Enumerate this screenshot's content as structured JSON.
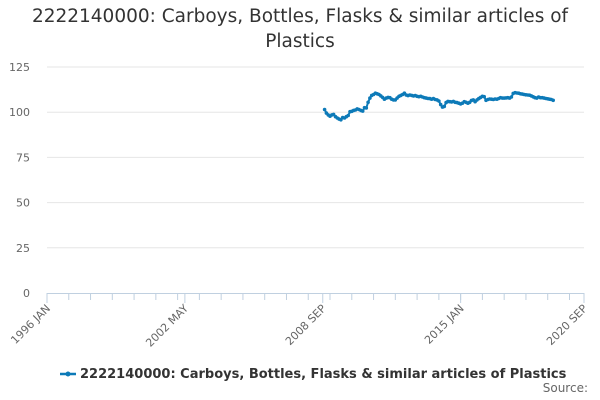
{
  "chart_data": {
    "type": "line",
    "title": "2222140000: Carboys, Bottles, Flasks & similar articles of Plastics",
    "source_label": "Source:",
    "x_axis": {
      "type": "date",
      "range": [
        "1996-01",
        "2020-09"
      ],
      "tick_labels": [
        "1996 JAN",
        "2002 MAY",
        "2008 SEP",
        "2015 JAN",
        "2020 SEP"
      ],
      "tick_dates": [
        "1996-01",
        "2002-05",
        "2008-09",
        "2015-01",
        "2020-09"
      ],
      "minor_tick_interval_months": 12
    },
    "y_axis": {
      "range": [
        0,
        125
      ],
      "ticks": [
        0,
        25,
        50,
        75,
        100,
        125
      ]
    },
    "grid": "horizontal",
    "legend_position": "bottom",
    "series": [
      {
        "name": "2222140000: Carboys, Bottles, Flasks & similar articles of Plastics",
        "color": "#0d7ab8",
        "points": [
          [
            "2008-10",
            101.5
          ],
          [
            "2008-11",
            99.5
          ],
          [
            "2008-12",
            98.5
          ],
          [
            "2009-01",
            97.8
          ],
          [
            "2009-02",
            98.5
          ],
          [
            "2009-03",
            98.8
          ],
          [
            "2009-04",
            97.5
          ],
          [
            "2009-05",
            96.8
          ],
          [
            "2009-06",
            96.2
          ],
          [
            "2009-07",
            95.8
          ],
          [
            "2009-08",
            97.0
          ],
          [
            "2009-09",
            96.8
          ],
          [
            "2009-10",
            97.5
          ],
          [
            "2009-11",
            98.2
          ],
          [
            "2009-12",
            100.3
          ],
          [
            "2010-01",
            100.5
          ],
          [
            "2010-02",
            101.0
          ],
          [
            "2010-03",
            101.2
          ],
          [
            "2010-04",
            101.8
          ],
          [
            "2010-05",
            101.5
          ],
          [
            "2010-06",
            101.0
          ],
          [
            "2010-07",
            100.6
          ],
          [
            "2010-08",
            102.5
          ],
          [
            "2010-09",
            102.3
          ],
          [
            "2010-10",
            105.5
          ],
          [
            "2010-11",
            107.8
          ],
          [
            "2010-12",
            109.3
          ],
          [
            "2011-01",
            109.8
          ],
          [
            "2011-02",
            110.5
          ],
          [
            "2011-03",
            110.2
          ],
          [
            "2011-04",
            109.8
          ],
          [
            "2011-05",
            109.0
          ],
          [
            "2011-06",
            108.2
          ],
          [
            "2011-07",
            107.2
          ],
          [
            "2011-08",
            107.8
          ],
          [
            "2011-09",
            108.2
          ],
          [
            "2011-10",
            108.0
          ],
          [
            "2011-11",
            107.2
          ],
          [
            "2011-12",
            106.8
          ],
          [
            "2012-01",
            106.8
          ],
          [
            "2012-02",
            107.8
          ],
          [
            "2012-03",
            108.8
          ],
          [
            "2012-04",
            109.3
          ],
          [
            "2012-05",
            109.8
          ],
          [
            "2012-06",
            110.5
          ],
          [
            "2012-07",
            109.5
          ],
          [
            "2012-08",
            109.2
          ],
          [
            "2012-09",
            109.5
          ],
          [
            "2012-10",
            109.3
          ],
          [
            "2012-11",
            109.0
          ],
          [
            "2012-12",
            109.2
          ],
          [
            "2013-01",
            108.8
          ],
          [
            "2013-02",
            108.6
          ],
          [
            "2013-03",
            108.8
          ],
          [
            "2013-04",
            108.4
          ],
          [
            "2013-05",
            108.0
          ],
          [
            "2013-06",
            107.8
          ],
          [
            "2013-07",
            107.6
          ],
          [
            "2013-08",
            107.5
          ],
          [
            "2013-09",
            107.2
          ],
          [
            "2013-10",
            107.5
          ],
          [
            "2013-11",
            107.0
          ],
          [
            "2013-12",
            106.8
          ],
          [
            "2014-01",
            106.2
          ],
          [
            "2014-02",
            104.2
          ],
          [
            "2014-03",
            102.8
          ],
          [
            "2014-04",
            103.2
          ],
          [
            "2014-05",
            105.3
          ],
          [
            "2014-06",
            106.0
          ],
          [
            "2014-07",
            105.8
          ],
          [
            "2014-08",
            105.7
          ],
          [
            "2014-09",
            106.0
          ],
          [
            "2014-10",
            105.5
          ],
          [
            "2014-11",
            105.3
          ],
          [
            "2014-12",
            105.0
          ],
          [
            "2015-01",
            104.6
          ],
          [
            "2015-02",
            105.0
          ],
          [
            "2015-03",
            105.8
          ],
          [
            "2015-04",
            105.5
          ],
          [
            "2015-05",
            105.0
          ],
          [
            "2015-06",
            105.5
          ],
          [
            "2015-07",
            106.5
          ],
          [
            "2015-08",
            106.8
          ],
          [
            "2015-09",
            105.8
          ],
          [
            "2015-10",
            106.8
          ],
          [
            "2015-11",
            107.5
          ],
          [
            "2015-12",
            108.2
          ],
          [
            "2016-01",
            108.8
          ],
          [
            "2016-02",
            108.6
          ],
          [
            "2016-03",
            106.6
          ],
          [
            "2016-04",
            107.0
          ],
          [
            "2016-05",
            107.3
          ],
          [
            "2016-06",
            107.2
          ],
          [
            "2016-07",
            107.0
          ],
          [
            "2016-08",
            107.3
          ],
          [
            "2016-09",
            107.2
          ],
          [
            "2016-10",
            107.6
          ],
          [
            "2016-11",
            108.0
          ],
          [
            "2016-12",
            107.8
          ],
          [
            "2017-01",
            107.8
          ],
          [
            "2017-02",
            107.9
          ],
          [
            "2017-03",
            108.0
          ],
          [
            "2017-04",
            107.8
          ],
          [
            "2017-05",
            108.4
          ],
          [
            "2017-06",
            110.4
          ],
          [
            "2017-07",
            110.8
          ],
          [
            "2017-08",
            110.6
          ],
          [
            "2017-09",
            110.5
          ],
          [
            "2017-10",
            110.2
          ],
          [
            "2017-11",
            110.0
          ],
          [
            "2017-12",
            109.8
          ],
          [
            "2018-01",
            109.6
          ],
          [
            "2018-02",
            109.5
          ],
          [
            "2018-03",
            109.4
          ],
          [
            "2018-04",
            109.0
          ],
          [
            "2018-05",
            108.5
          ],
          [
            "2018-06",
            108.0
          ],
          [
            "2018-07",
            107.8
          ],
          [
            "2018-08",
            108.4
          ],
          [
            "2018-09",
            108.0
          ],
          [
            "2018-10",
            108.0
          ],
          [
            "2018-11",
            107.8
          ],
          [
            "2018-12",
            107.6
          ],
          [
            "2019-01",
            107.4
          ],
          [
            "2019-02",
            107.2
          ],
          [
            "2019-03",
            107.0
          ],
          [
            "2019-04",
            106.6
          ]
        ]
      }
    ]
  }
}
